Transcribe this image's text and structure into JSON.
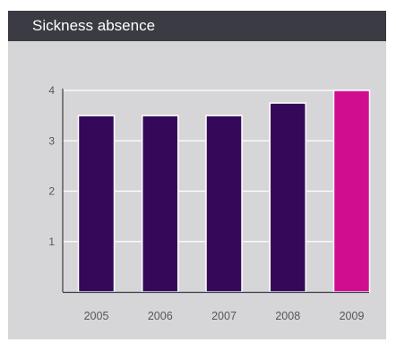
{
  "chart_data": {
    "type": "bar",
    "title": "Sickness absence",
    "xlabel": "",
    "ylabel": "",
    "categories": [
      "2005",
      "2006",
      "2007",
      "2008",
      "2009"
    ],
    "values": [
      3.5,
      3.5,
      3.5,
      3.75,
      4.0
    ],
    "yticks": [
      1,
      2,
      3,
      4
    ],
    "ylim": [
      0,
      4
    ],
    "grid": true,
    "legend": "none",
    "colors": {
      "bar": "#36085a",
      "highlight_bar": "#d10d8f",
      "header_bg": "#3a3b43",
      "panel_bg": "#d6d6d8",
      "gridline": "#ffffff",
      "text": "#55565c"
    },
    "highlight_category": "2009"
  }
}
